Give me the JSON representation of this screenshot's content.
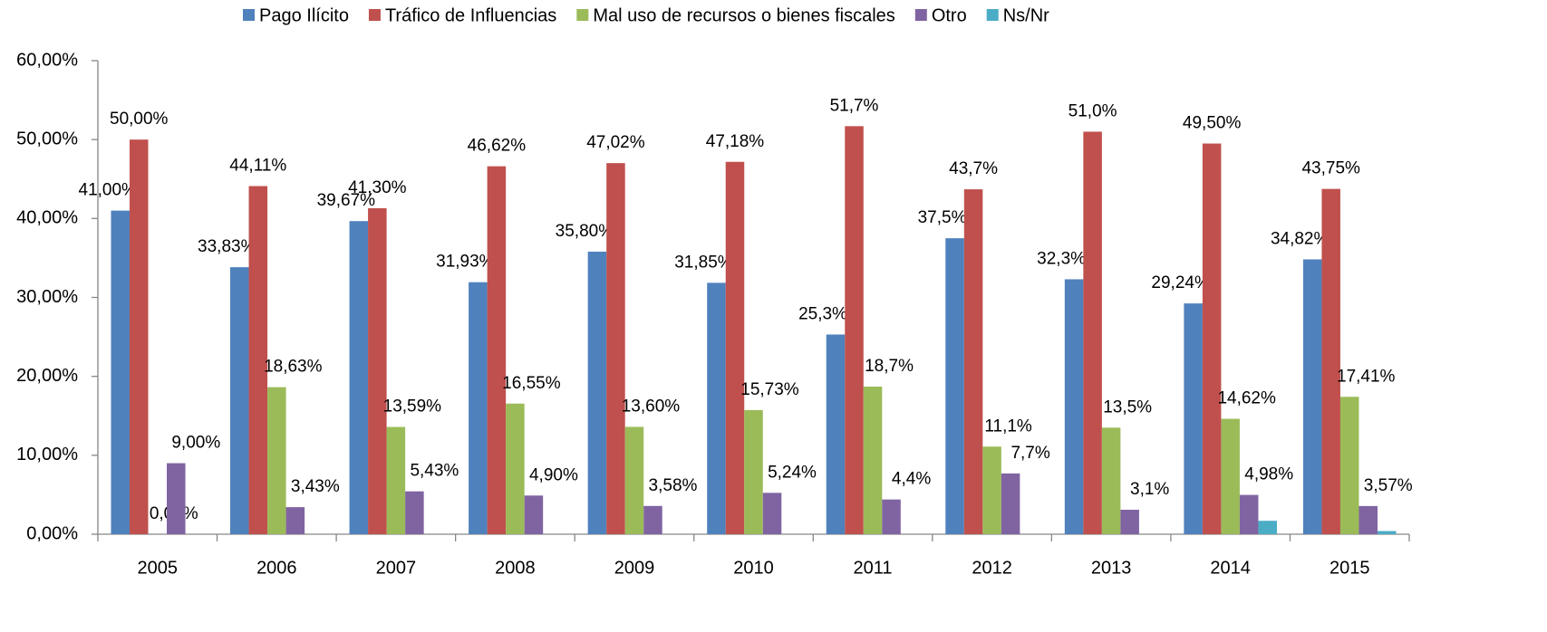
{
  "chart_data": {
    "type": "bar",
    "categories": [
      "2005",
      "2006",
      "2007",
      "2008",
      "2009",
      "2010",
      "2011",
      "2012",
      "2013",
      "2014",
      "2015"
    ],
    "series": [
      {
        "name": "Pago Ilícito",
        "color": "#4f81bd",
        "values": [
          41.0,
          33.83,
          39.67,
          31.93,
          35.8,
          31.85,
          25.3,
          37.5,
          32.3,
          29.24,
          34.82
        ],
        "value_labels": [
          "41,00%",
          "33,83%",
          "39,67%",
          "31,93%",
          "35,80%",
          "31,85%",
          "25,3%",
          "37,5%",
          "32,3%",
          "29,24%",
          "34,82%"
        ]
      },
      {
        "name": "Tráfico de Influencias",
        "color": "#c0504d",
        "values": [
          50.0,
          44.11,
          41.3,
          46.62,
          47.02,
          47.18,
          51.7,
          43.7,
          51.0,
          49.5,
          43.75
        ],
        "value_labels": [
          "50,00%",
          "44,11%",
          "41,30%",
          "46,62%",
          "47,02%",
          "47,18%",
          "51,7%",
          "43,7%",
          "51,0%",
          "49,50%",
          "43,75%"
        ]
      },
      {
        "name": "Mal uso de recursos o bienes fiscales",
        "color": "#9bbb59",
        "values": [
          0.0,
          18.63,
          13.59,
          16.55,
          13.6,
          15.73,
          18.7,
          11.1,
          13.5,
          14.62,
          17.41
        ],
        "value_labels": [
          "0,00%",
          "18,63%",
          "13,59%",
          "16,55%",
          "13,60%",
          "15,73%",
          "18,7%",
          "11,1%",
          "13,5%",
          "14,62%",
          "17,41%"
        ]
      },
      {
        "name": "Otro",
        "color": "#8064a2",
        "values": [
          9.0,
          3.43,
          5.43,
          4.9,
          3.58,
          5.24,
          4.4,
          7.7,
          3.1,
          4.98,
          3.57
        ],
        "value_labels": [
          "9,00%",
          "3,43%",
          "5,43%",
          "4,90%",
          "3,58%",
          "5,24%",
          "4,4%",
          "7,7%",
          "3,1%",
          "4,98%",
          "3,57%"
        ]
      },
      {
        "name": "Ns/Nr",
        "color": "#4bacc6",
        "values": [
          null,
          null,
          null,
          null,
          null,
          null,
          null,
          null,
          null,
          1.7,
          0.4
        ]
      }
    ],
    "ylim": [
      0,
      60
    ],
    "yticks": [
      {
        "value": 0,
        "label": "0,00%"
      },
      {
        "value": 10,
        "label": "10,00%"
      },
      {
        "value": 20,
        "label": "20,00%"
      },
      {
        "value": 30,
        "label": "30,00%"
      },
      {
        "value": 40,
        "label": "40,00%"
      },
      {
        "value": 50,
        "label": "50,00%"
      },
      {
        "value": 60,
        "label": "60,00%"
      }
    ],
    "legend": "top",
    "grid": false
  }
}
